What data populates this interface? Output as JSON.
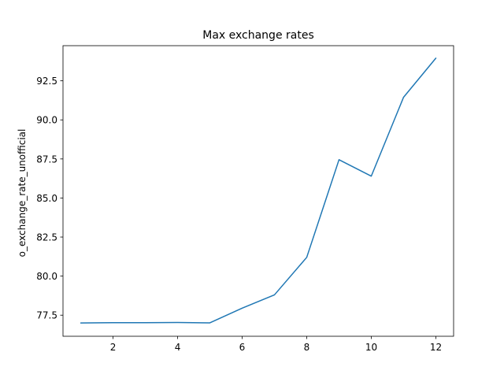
{
  "chart_data": {
    "type": "line",
    "title": "Max exchange rates",
    "xlabel": "",
    "ylabel": "o_exchange_rate_unofficial",
    "xlim": [
      0.45,
      12.55
    ],
    "ylim": [
      76.15,
      94.75
    ],
    "xticks": [
      2,
      4,
      6,
      8,
      10,
      12
    ],
    "xtick_labels": [
      "2",
      "4",
      "6",
      "8",
      "10",
      "12"
    ],
    "yticks": [
      77.5,
      80.0,
      82.5,
      85.0,
      87.5,
      90.0,
      92.5
    ],
    "ytick_labels": [
      "77.5",
      "80.0",
      "82.5",
      "85.0",
      "87.5",
      "90.0",
      "92.5"
    ],
    "grid": false,
    "line_color": "#1f77b4",
    "series": [
      {
        "x": [
          1,
          2,
          3,
          4,
          5,
          6,
          7,
          8,
          9,
          10,
          11,
          12
        ],
        "y": [
          77.0,
          77.02,
          77.02,
          77.03,
          77.01,
          77.95,
          78.8,
          81.2,
          87.45,
          86.4,
          91.45,
          93.95
        ]
      }
    ]
  }
}
